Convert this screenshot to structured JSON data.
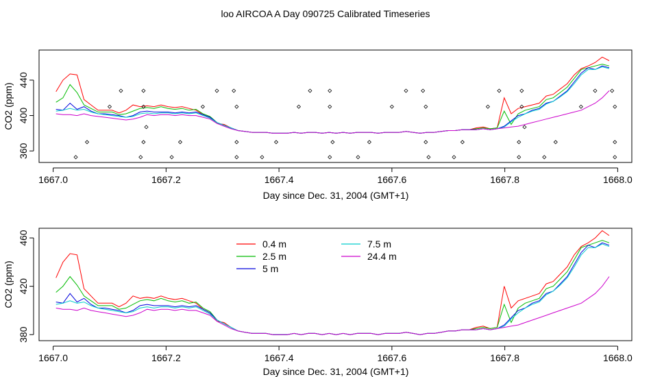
{
  "figure": {
    "title": "loo AIRCOA A  Day 090725  Calibrated Timeseries"
  },
  "chart_data": [
    {
      "type": "line",
      "xlabel": "Day since Dec. 31, 2004 (GMT+1)",
      "ylabel": "CO2 (ppm)",
      "xlim": [
        1666.975,
        1668.025
      ],
      "ylim": [
        347,
        474
      ],
      "xticks": [
        "1667.0",
        "1667.2",
        "1667.4",
        "1667.6",
        "1667.8",
        "1668.0"
      ],
      "yticks": [
        "360",
        "400",
        "440"
      ],
      "ytick_values": [
        360,
        400,
        440
      ],
      "grid": false,
      "series": [
        {
          "color": "#ff0000",
          "values": [
            427,
            440,
            447,
            446,
            418,
            412,
            406,
            406,
            406,
            403,
            406,
            412,
            410,
            411,
            410,
            412,
            410,
            409,
            410,
            408,
            406,
            401,
            398,
            391,
            390,
            386,
            383,
            382,
            381,
            381,
            381,
            380,
            380,
            380,
            381,
            380,
            381,
            381,
            380,
            381,
            380,
            381,
            380,
            381,
            381,
            381,
            380,
            381,
            381,
            381,
            382,
            381,
            380,
            381,
            381,
            382,
            383,
            383,
            384,
            384,
            386,
            387,
            385,
            386,
            420,
            402,
            408,
            410,
            412,
            414,
            422,
            424,
            430,
            436,
            446,
            453,
            456,
            460,
            466,
            462
          ]
        },
        {
          "color": "#00bb00",
          "values": [
            415,
            420,
            435,
            426,
            412,
            408,
            404,
            404,
            404,
            401,
            402,
            405,
            408,
            409,
            408,
            410,
            408,
            407,
            408,
            406,
            407,
            402,
            399,
            392,
            389,
            386,
            383,
            382,
            381,
            381,
            381,
            380,
            380,
            380,
            381,
            380,
            381,
            381,
            380,
            381,
            380,
            381,
            380,
            381,
            381,
            381,
            380,
            381,
            381,
            381,
            382,
            381,
            380,
            381,
            381,
            382,
            383,
            383,
            384,
            384,
            385,
            386,
            385,
            386,
            405,
            390,
            402,
            406,
            408,
            410,
            418,
            420,
            426,
            432,
            442,
            452,
            454,
            456,
            458,
            456
          ]
        },
        {
          "color": "#0000dd",
          "values": [
            407,
            406,
            414,
            407,
            410,
            405,
            402,
            402,
            401,
            400,
            398,
            400,
            404,
            405,
            404,
            404,
            404,
            403,
            404,
            403,
            404,
            401,
            398,
            392,
            389,
            386,
            383,
            382,
            381,
            381,
            381,
            380,
            380,
            380,
            381,
            380,
            381,
            381,
            380,
            381,
            380,
            381,
            380,
            381,
            381,
            381,
            380,
            381,
            381,
            381,
            382,
            381,
            380,
            381,
            381,
            382,
            383,
            383,
            384,
            384,
            384,
            385,
            384,
            385,
            388,
            394,
            400,
            402,
            406,
            408,
            414,
            416,
            422,
            428,
            438,
            448,
            454,
            452,
            456,
            454
          ]
        },
        {
          "color": "#00cccc",
          "values": [
            405,
            406,
            408,
            406,
            407,
            404,
            402,
            401,
            400,
            399,
            398,
            399,
            402,
            403,
            402,
            403,
            403,
            402,
            403,
            402,
            403,
            400,
            397,
            392,
            389,
            386,
            383,
            382,
            381,
            381,
            381,
            380,
            380,
            380,
            381,
            380,
            381,
            381,
            380,
            381,
            380,
            381,
            380,
            381,
            381,
            381,
            380,
            381,
            381,
            381,
            382,
            381,
            380,
            381,
            381,
            382,
            383,
            383,
            384,
            384,
            384,
            385,
            384,
            385,
            387,
            393,
            398,
            402,
            405,
            407,
            413,
            416,
            421,
            427,
            436,
            446,
            452,
            452,
            455,
            453
          ]
        },
        {
          "color": "#cc00cc",
          "values": [
            402,
            401,
            401,
            400,
            402,
            400,
            399,
            398,
            397,
            396,
            395,
            396,
            398,
            401,
            400,
            401,
            401,
            400,
            401,
            400,
            400,
            398,
            396,
            391,
            388,
            385,
            383,
            382,
            381,
            381,
            381,
            380,
            380,
            380,
            381,
            380,
            381,
            381,
            380,
            381,
            380,
            381,
            380,
            381,
            381,
            381,
            380,
            381,
            381,
            381,
            382,
            381,
            380,
            381,
            381,
            382,
            383,
            383,
            384,
            384,
            384,
            385,
            384,
            385,
            386,
            387,
            388,
            390,
            392,
            394,
            396,
            398,
            400,
            402,
            404,
            406,
            410,
            414,
            420,
            428
          ]
        }
      ],
      "scatter": {
        "marker": "diamond-open",
        "x": [
          1667.04,
          1667.06,
          1667.1,
          1667.12,
          1667.155,
          1667.16,
          1667.16,
          1667.16,
          1667.165,
          1667.21,
          1667.225,
          1667.265,
          1667.29,
          1667.32,
          1667.325,
          1667.325,
          1667.325,
          1667.37,
          1667.395,
          1667.435,
          1667.455,
          1667.49,
          1667.49,
          1667.49,
          1667.495,
          1667.54,
          1667.56,
          1667.6,
          1667.625,
          1667.655,
          1667.66,
          1667.66,
          1667.665,
          1667.71,
          1667.725,
          1667.77,
          1667.79,
          1667.825,
          1667.825,
          1667.83,
          1667.83,
          1667.835,
          1667.87,
          1667.89,
          1667.935,
          1667.96,
          1667.99,
          1667.995,
          1667.995,
          1667.995
        ],
        "y": [
          353,
          370,
          410,
          428,
          353,
          428,
          410,
          370,
          387,
          353,
          370,
          410,
          428,
          428,
          410,
          370,
          353,
          353,
          370,
          410,
          428,
          428,
          410,
          353,
          370,
          353,
          370,
          410,
          428,
          428,
          410,
          370,
          353,
          353,
          370,
          410,
          428,
          353,
          370,
          410,
          428,
          387,
          353,
          370,
          410,
          428,
          428,
          410,
          370,
          353
        ]
      }
    },
    {
      "type": "line",
      "xlabel": "Day since Dec. 31, 2004 (GMT+1)",
      "ylabel": "CO2 (ppm)",
      "xlim": [
        1666.975,
        1668.025
      ],
      "ylim": [
        375,
        468
      ],
      "xticks": [
        "1667.0",
        "1667.2",
        "1667.4",
        "1667.6",
        "1667.8",
        "1668.0"
      ],
      "yticks": [
        "380",
        "420",
        "460"
      ],
      "ytick_values": [
        380,
        420,
        460
      ],
      "grid": false,
      "legend": {
        "placement": "top-center",
        "labels": [
          "0.4 m",
          "2.5 m",
          "5 m",
          "7.5 m",
          "24.4 m"
        ],
        "columns": 2
      },
      "series": [
        {
          "name": "0.4 m",
          "color": "#ff0000",
          "values": [
            427,
            440,
            447,
            446,
            418,
            412,
            406,
            406,
            406,
            403,
            406,
            412,
            410,
            411,
            410,
            412,
            410,
            409,
            410,
            408,
            406,
            401,
            398,
            391,
            390,
            386,
            383,
            382,
            381,
            381,
            381,
            380,
            380,
            380,
            381,
            380,
            381,
            381,
            380,
            381,
            380,
            381,
            380,
            381,
            381,
            381,
            380,
            381,
            381,
            381,
            382,
            381,
            380,
            381,
            381,
            382,
            383,
            383,
            384,
            384,
            386,
            387,
            385,
            386,
            420,
            402,
            408,
            410,
            412,
            414,
            422,
            424,
            430,
            436,
            446,
            453,
            456,
            460,
            466,
            462
          ]
        },
        {
          "name": "2.5 m",
          "color": "#00bb00",
          "values": [
            415,
            420,
            428,
            421,
            412,
            408,
            404,
            404,
            404,
            401,
            402,
            405,
            408,
            409,
            408,
            410,
            408,
            407,
            408,
            406,
            407,
            402,
            399,
            392,
            389,
            386,
            383,
            382,
            381,
            381,
            381,
            380,
            380,
            380,
            381,
            380,
            381,
            381,
            380,
            381,
            380,
            381,
            380,
            381,
            381,
            381,
            380,
            381,
            381,
            381,
            382,
            381,
            380,
            381,
            381,
            382,
            383,
            383,
            384,
            384,
            385,
            386,
            385,
            386,
            405,
            390,
            402,
            406,
            408,
            410,
            418,
            420,
            426,
            432,
            442,
            452,
            454,
            456,
            458,
            456
          ]
        },
        {
          "name": "5 m",
          "color": "#0000dd",
          "values": [
            407,
            406,
            414,
            407,
            410,
            405,
            402,
            402,
            401,
            400,
            398,
            400,
            404,
            405,
            404,
            404,
            404,
            403,
            404,
            403,
            404,
            401,
            398,
            392,
            389,
            386,
            383,
            382,
            381,
            381,
            381,
            380,
            380,
            380,
            381,
            380,
            381,
            381,
            380,
            381,
            380,
            381,
            380,
            381,
            381,
            381,
            380,
            381,
            381,
            381,
            382,
            381,
            380,
            381,
            381,
            382,
            383,
            383,
            384,
            384,
            384,
            385,
            384,
            385,
            388,
            394,
            400,
            402,
            406,
            408,
            414,
            416,
            422,
            428,
            438,
            448,
            454,
            452,
            456,
            454
          ]
        },
        {
          "name": "7.5 m",
          "color": "#00cccc",
          "values": [
            405,
            406,
            408,
            406,
            407,
            404,
            402,
            401,
            400,
            399,
            398,
            399,
            402,
            403,
            402,
            403,
            403,
            402,
            403,
            402,
            403,
            400,
            397,
            392,
            389,
            386,
            383,
            382,
            381,
            381,
            381,
            380,
            380,
            380,
            381,
            380,
            381,
            381,
            380,
            381,
            380,
            381,
            380,
            381,
            381,
            381,
            380,
            381,
            381,
            381,
            382,
            381,
            380,
            381,
            381,
            382,
            383,
            383,
            384,
            384,
            384,
            385,
            384,
            385,
            387,
            393,
            398,
            402,
            405,
            407,
            413,
            416,
            421,
            427,
            436,
            446,
            452,
            452,
            455,
            453
          ]
        },
        {
          "name": "24.4 m",
          "color": "#cc00cc",
          "values": [
            402,
            401,
            401,
            400,
            402,
            400,
            399,
            398,
            397,
            396,
            395,
            396,
            398,
            401,
            400,
            401,
            401,
            400,
            401,
            400,
            400,
            398,
            396,
            391,
            388,
            385,
            383,
            382,
            381,
            381,
            381,
            380,
            380,
            380,
            381,
            380,
            381,
            381,
            380,
            381,
            380,
            381,
            380,
            381,
            381,
            381,
            380,
            381,
            381,
            381,
            382,
            381,
            380,
            381,
            381,
            382,
            383,
            383,
            384,
            384,
            384,
            385,
            384,
            385,
            386,
            387,
            388,
            390,
            392,
            394,
            396,
            398,
            400,
            402,
            404,
            406,
            410,
            414,
            420,
            428
          ]
        }
      ]
    }
  ]
}
